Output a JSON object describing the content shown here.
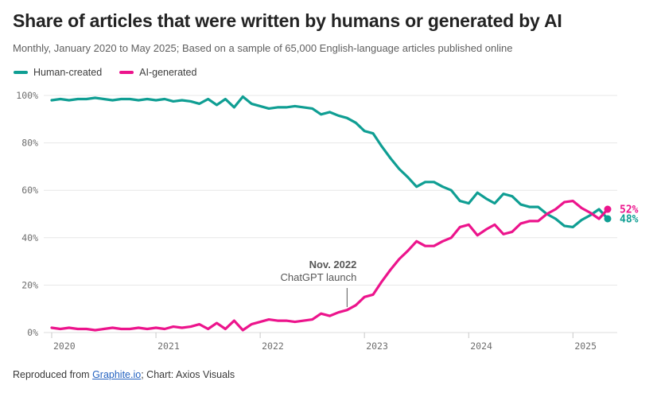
{
  "header": {
    "title": "Share of articles that were written by humans or generated by AI",
    "subtitle": "Monthly, January 2020 to May 2025; Based on a sample of 65,000 English-language articles published online"
  },
  "footer": {
    "prefix": "Reproduced from ",
    "link": "Graphite.io",
    "suffix": "; Chart: Axios Visuals"
  },
  "colors": {
    "human": "#0f9e93",
    "ai": "#ec148c",
    "grid": "#e7e7e7",
    "baseline": "#dcdcdc",
    "tick_mark": "#c9c9c9",
    "axis_text": "#6e6e6e",
    "annotation_text": "#575757",
    "annotation_line": "#555555",
    "link_blue": "#2563c1"
  },
  "chart_data": {
    "type": "line",
    "title": "Share of articles that were written by humans or generated by AI",
    "subtitle": "Monthly, January 2020 to May 2025; Based on a sample of 65,000 English-language articles published online",
    "xlabel": "",
    "ylabel": "",
    "ylim": [
      0,
      100
    ],
    "grid": "horizontal",
    "legend_position": "top-left",
    "y_ticks": [
      0,
      20,
      40,
      60,
      80,
      100
    ],
    "y_tick_labels": [
      "0%",
      "20%",
      "40%",
      "60%",
      "80%",
      "100%"
    ],
    "x_tick_labels": [
      "2020",
      "2021",
      "2022",
      "2023",
      "2024",
      "2025"
    ],
    "months": [
      "2020-01",
      "2020-02",
      "2020-03",
      "2020-04",
      "2020-05",
      "2020-06",
      "2020-07",
      "2020-08",
      "2020-09",
      "2020-10",
      "2020-11",
      "2020-12",
      "2021-01",
      "2021-02",
      "2021-03",
      "2021-04",
      "2021-05",
      "2021-06",
      "2021-07",
      "2021-08",
      "2021-09",
      "2021-10",
      "2021-11",
      "2021-12",
      "2022-01",
      "2022-02",
      "2022-03",
      "2022-04",
      "2022-05",
      "2022-06",
      "2022-07",
      "2022-08",
      "2022-09",
      "2022-10",
      "2022-11",
      "2022-12",
      "2023-01",
      "2023-02",
      "2023-03",
      "2023-04",
      "2023-05",
      "2023-06",
      "2023-07",
      "2023-08",
      "2023-09",
      "2023-10",
      "2023-11",
      "2023-12",
      "2024-01",
      "2024-02",
      "2024-03",
      "2024-04",
      "2024-05",
      "2024-06",
      "2024-07",
      "2024-08",
      "2024-09",
      "2024-10",
      "2024-11",
      "2024-12",
      "2025-01",
      "2025-02",
      "2025-03",
      "2025-04",
      "2025-05"
    ],
    "series": [
      {
        "name": "Human-created",
        "color": "#0f9e93",
        "end_label": "48%",
        "end_value": 48,
        "values": [
          98,
          98.5,
          98,
          98.5,
          98.5,
          99,
          98.5,
          98,
          98.5,
          98.5,
          98,
          98.5,
          98,
          98.5,
          97.5,
          98,
          97.5,
          96.5,
          98.5,
          96,
          98.5,
          95,
          99.5,
          96.5,
          95.5,
          94.5,
          95,
          95,
          95.5,
          95,
          94.5,
          92,
          93,
          91.5,
          90.5,
          88.5,
          85,
          84,
          78.5,
          73.5,
          69,
          65.5,
          61.5,
          63.5,
          63.5,
          61.5,
          60,
          55.5,
          54.5,
          59,
          56.5,
          54.5,
          58.5,
          57.5,
          54,
          53,
          53,
          50,
          48,
          45,
          44.5,
          47.5,
          49.5,
          52,
          48
        ]
      },
      {
        "name": "AI-generated",
        "color": "#ec148c",
        "end_label": "52%",
        "end_value": 52,
        "values": [
          2,
          1.5,
          2,
          1.5,
          1.5,
          1,
          1.5,
          2,
          1.5,
          1.5,
          2,
          1.5,
          2,
          1.5,
          2.5,
          2,
          2.5,
          3.5,
          1.5,
          4,
          1.5,
          5,
          1,
          3.5,
          4.5,
          5.5,
          5,
          5,
          4.5,
          5,
          5.5,
          8,
          7,
          8.5,
          9.5,
          11.5,
          15,
          16,
          21.5,
          26.5,
          31,
          34.5,
          38.5,
          36.5,
          36.5,
          38.5,
          40,
          44.5,
          45.5,
          41,
          43.5,
          45.5,
          41.5,
          42.5,
          46,
          47,
          47,
          50,
          52,
          55,
          55.5,
          52.5,
          50.5,
          48,
          52
        ]
      }
    ],
    "annotation": {
      "line1": "Nov. 2022",
      "line2": "ChatGPT launch",
      "month": "2022-11"
    }
  }
}
